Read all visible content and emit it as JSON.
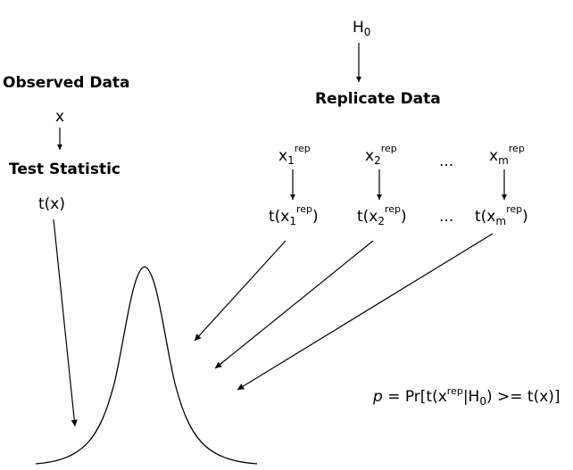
{
  "null_hypothesis": {
    "base": "H",
    "sub": "0"
  },
  "observed": {
    "heading": "Observed Data",
    "variable": "x",
    "statistic_heading": "Test Statistic",
    "statistic": "t(x)"
  },
  "replicate": {
    "heading": "Replicate Data",
    "ellipsis": "...",
    "sup": "rep",
    "items": [
      {
        "base": "x",
        "sub": "1",
        "stat_open": "t(x",
        "stat_close": ")"
      },
      {
        "base": "x",
        "sub": "2",
        "stat_open": "t(x",
        "stat_close": ")"
      },
      {
        "base": "x",
        "sub": "m",
        "stat_open": "t(x",
        "stat_close": ")"
      }
    ]
  },
  "formula": {
    "p": "p",
    "eq": " = Pr[t(x",
    "sup": "rep",
    "mid": "|H",
    "sub": "0",
    "tail": ") >= t(x)]"
  }
}
